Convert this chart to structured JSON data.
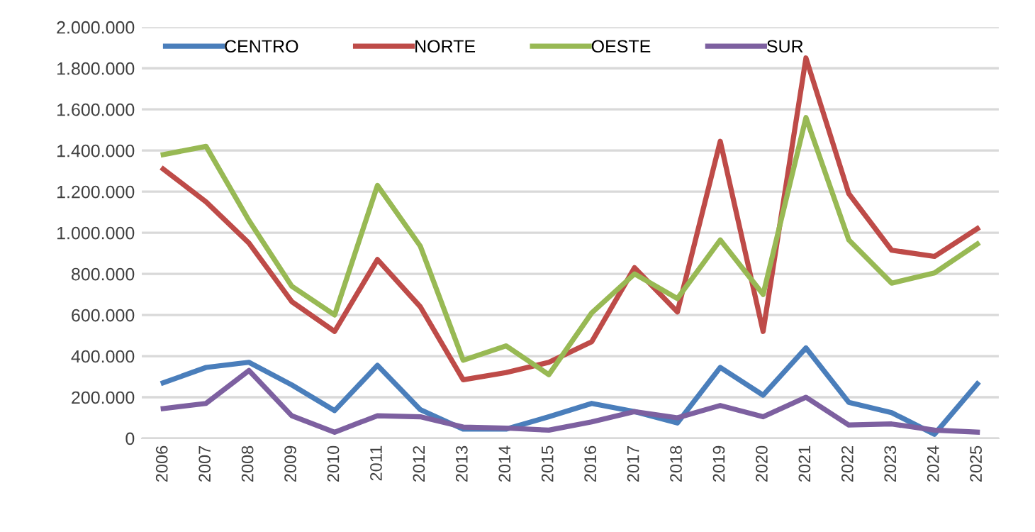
{
  "chart_data": {
    "type": "line",
    "categories": [
      "2006",
      "2007",
      "2008",
      "2009",
      "2010",
      "2011",
      "2012",
      "2013",
      "2014",
      "2015",
      "2016",
      "2017",
      "2018",
      "2019",
      "2020",
      "2021",
      "2022",
      "2023",
      "2024",
      "2025"
    ],
    "series": [
      {
        "name": "CENTRO",
        "color": "#4a7ebb",
        "values": [
          270000,
          345000,
          370000,
          260000,
          135000,
          355000,
          140000,
          45000,
          45000,
          105000,
          170000,
          130000,
          75000,
          345000,
          210000,
          440000,
          175000,
          125000,
          20000,
          265000
        ]
      },
      {
        "name": "NORTE",
        "color": "#be4b48",
        "values": [
          1310000,
          1150000,
          950000,
          665000,
          520000,
          870000,
          640000,
          285000,
          320000,
          370000,
          470000,
          830000,
          615000,
          1445000,
          520000,
          1850000,
          1190000,
          915000,
          885000,
          1020000
        ]
      },
      {
        "name": "OESTE",
        "color": "#98b954",
        "values": [
          1380000,
          1420000,
          1060000,
          740000,
          600000,
          1230000,
          935000,
          380000,
          450000,
          310000,
          610000,
          800000,
          680000,
          965000,
          700000,
          1560000,
          965000,
          755000,
          805000,
          945000
        ]
      },
      {
        "name": "SUR",
        "color": "#7d60a0",
        "values": [
          145000,
          170000,
          330000,
          110000,
          30000,
          110000,
          105000,
          55000,
          50000,
          40000,
          80000,
          130000,
          100000,
          160000,
          105000,
          200000,
          65000,
          70000,
          40000,
          30000
        ]
      }
    ],
    "ylim": [
      0,
      2000000
    ],
    "yticks": [
      0,
      {
        "value": 200000,
        "label": "200.000"
      },
      {
        "value": 400000,
        "label": "400.000"
      },
      {
        "value": 600000,
        "label": "600.000"
      },
      {
        "value": 800000,
        "label": "800.000"
      },
      {
        "value": 1000000,
        "label": "1.000.000"
      },
      {
        "value": 1200000,
        "label": "1.200.000"
      },
      {
        "value": 1400000,
        "label": "1.400.000"
      },
      {
        "value": 1600000,
        "label": "1.600.000"
      },
      {
        "value": 1800000,
        "label": "1.800.000"
      },
      {
        "value": 2000000,
        "label": "2.000.000"
      }
    ],
    "grid": "y",
    "legend": "top",
    "marker": "none",
    "line_style": "solid"
  }
}
